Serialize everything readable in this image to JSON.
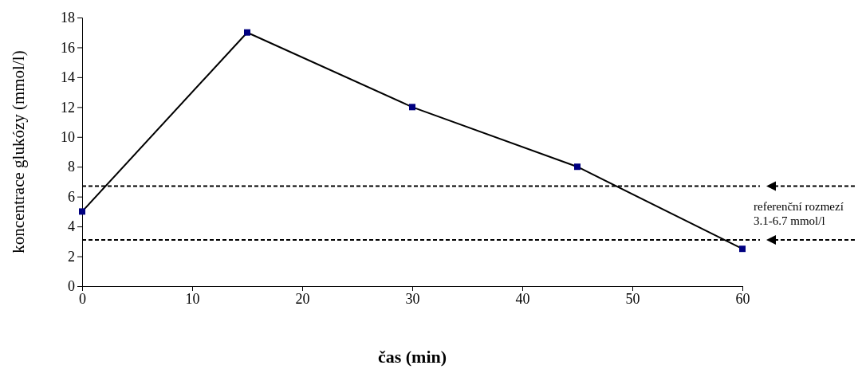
{
  "chart_data": {
    "type": "line",
    "xlabel": "čas (min)",
    "ylabel": "koncentrace glukózy (mmol/l)",
    "x": [
      0,
      15,
      30,
      45,
      60
    ],
    "series": [
      {
        "color": "#000000",
        "colors": [
          "#000080",
          "#000080",
          "#000080",
          "#000080",
          "#000080"
        ],
        "values": [
          5,
          17,
          12,
          8,
          2.5
        ]
      }
    ],
    "xlim": [
      0,
      60
    ],
    "xticks": [
      0,
      10,
      20,
      30,
      40,
      50,
      60
    ],
    "ylim": [
      0,
      18
    ],
    "yticks": [
      0,
      2,
      4,
      6,
      8,
      10,
      12,
      14,
      16,
      18
    ],
    "marker": "square",
    "line_style": "solid",
    "grid": false,
    "ref_lines": [
      {
        "axis": "y",
        "value": 6.7,
        "color": "#000000",
        "line_style": "dashed"
      },
      {
        "axis": "y",
        "value": 3.1,
        "color": "#000000",
        "line_style": "dashed"
      }
    ],
    "annotations": [
      "referenční rozmezí 3.1-6.7 mmol/l"
    ]
  }
}
